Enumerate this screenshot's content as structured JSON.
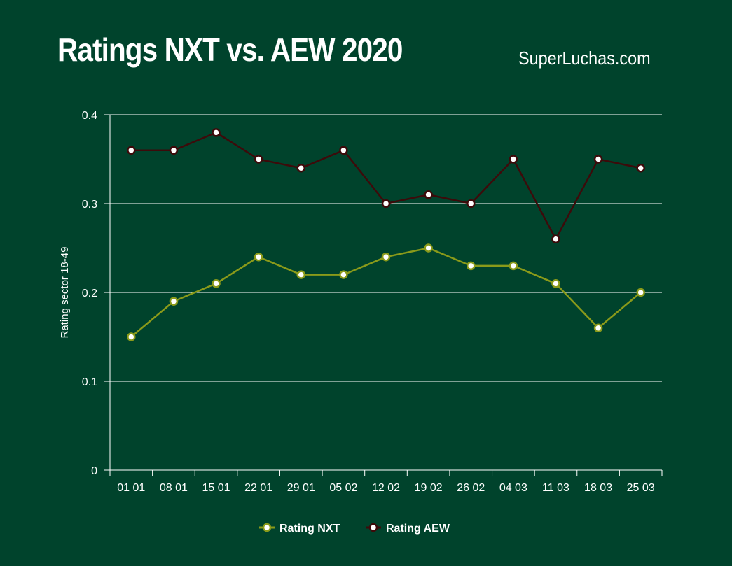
{
  "title": "Ratings NXT vs. AEW 2020",
  "brand": "SuperLuchas.com",
  "chart_data": {
    "type": "line",
    "title": "Ratings NXT vs. AEW 2020",
    "xlabel": "",
    "ylabel": "Rating sector 18-49",
    "ylim": [
      0,
      0.4
    ],
    "yticks": [
      "0",
      "0.1",
      "0.2",
      "0.3",
      "0.4"
    ],
    "grid": true,
    "legend": "bottom",
    "categories": [
      "01 01",
      "08 01",
      "15 01",
      "22 01",
      "29 01",
      "05 02",
      "12 02",
      "19 02",
      "26 02",
      "04 03",
      "11 03",
      "18 03",
      "25 03"
    ],
    "series": [
      {
        "name": "Rating NXT",
        "color": "#8a9a1a",
        "values": [
          0.15,
          0.19,
          0.21,
          0.24,
          0.22,
          0.22,
          0.24,
          0.25,
          0.23,
          0.23,
          0.21,
          0.16,
          0.2
        ]
      },
      {
        "name": "Rating AEW",
        "color": "#3d0a0a",
        "values": [
          0.36,
          0.36,
          0.38,
          0.35,
          0.34,
          0.36,
          0.3,
          0.31,
          0.3,
          0.35,
          0.26,
          0.35,
          0.34
        ]
      }
    ]
  },
  "colors": {
    "background": "#00432c",
    "grid": "#ffffff"
  }
}
